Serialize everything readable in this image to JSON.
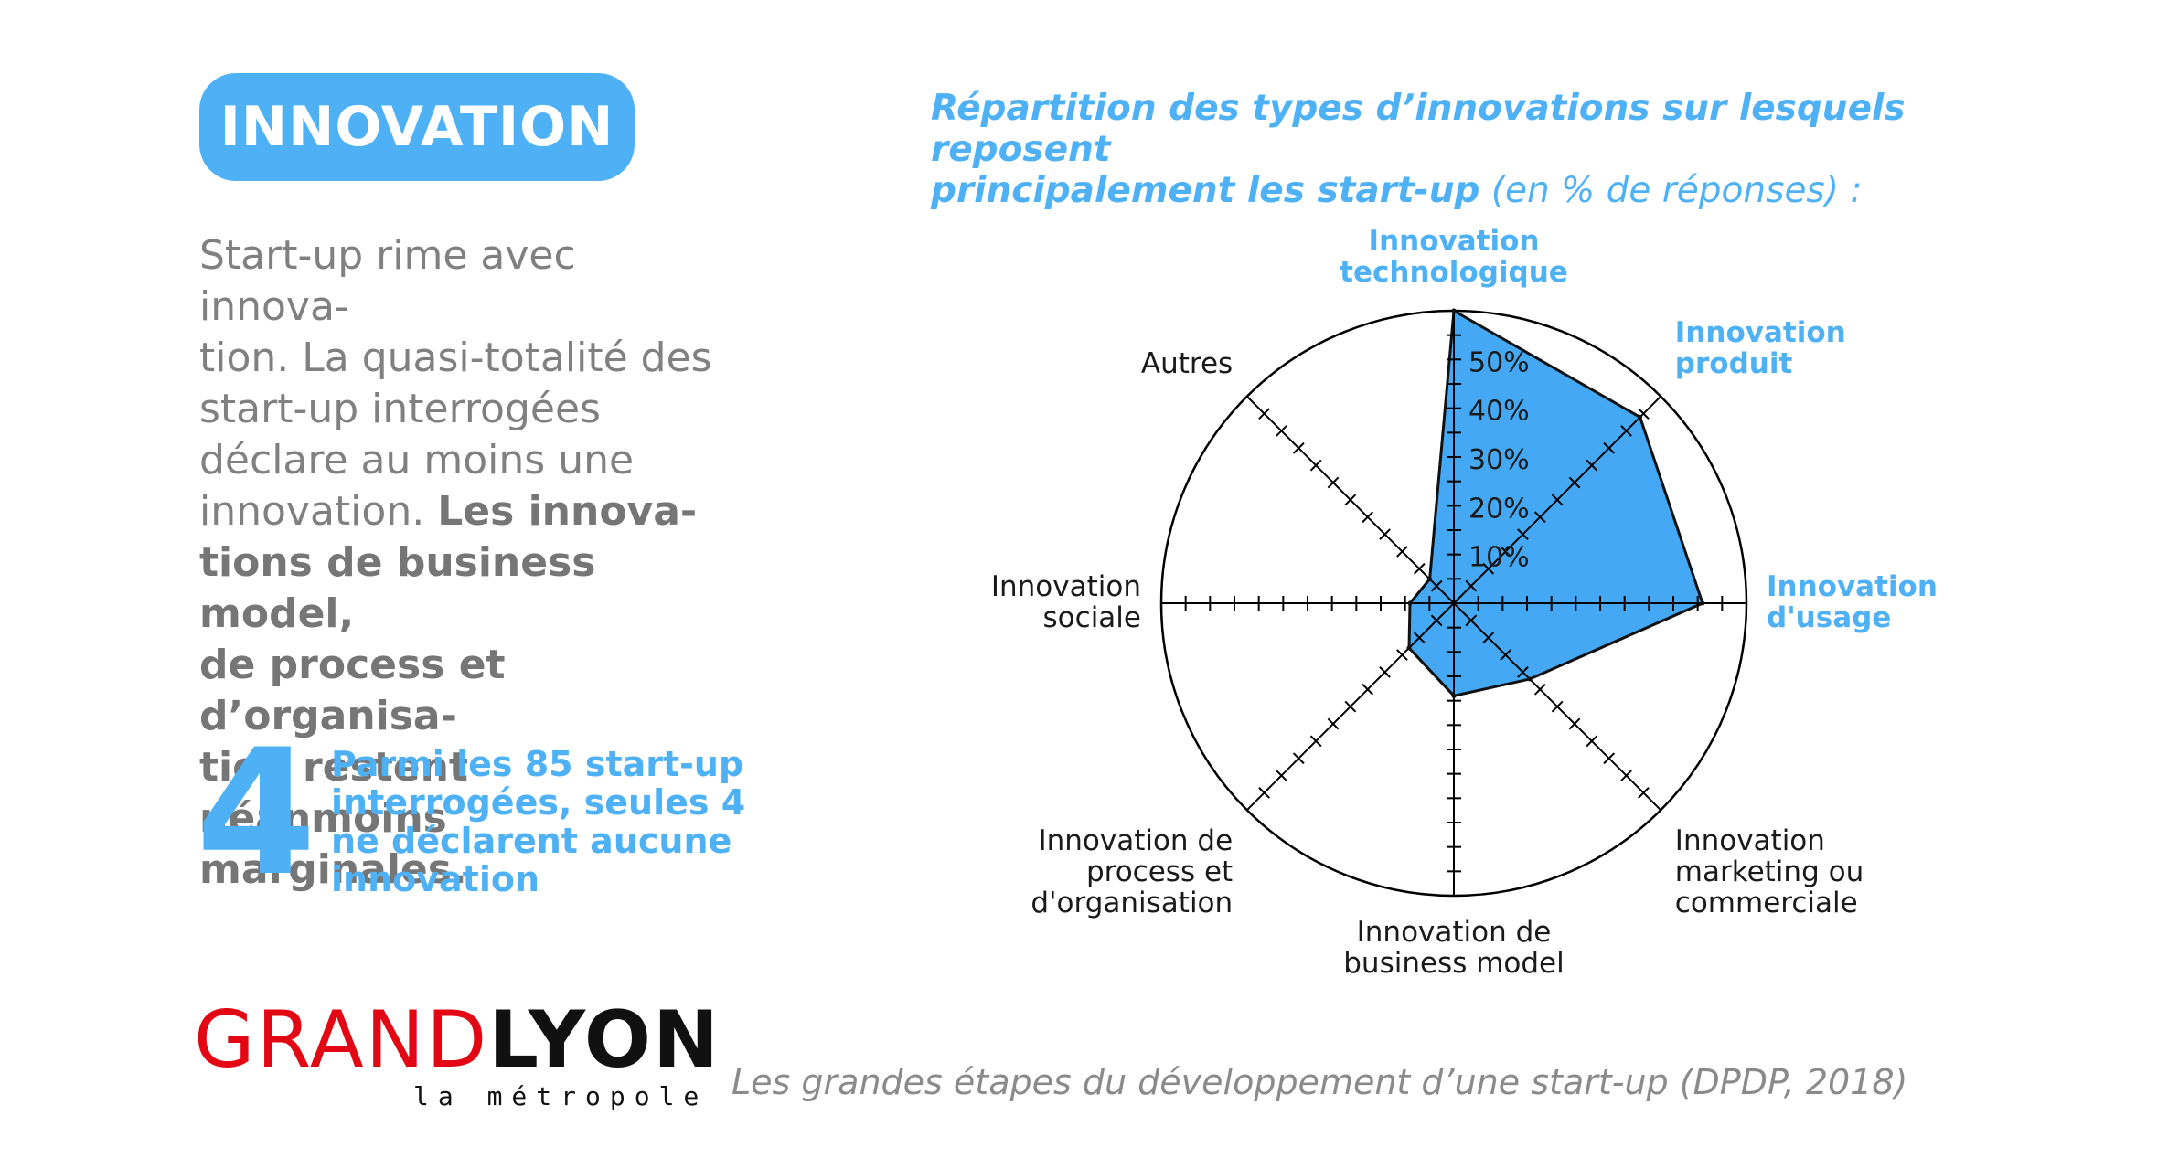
{
  "badge": {
    "label": "INNOVATION"
  },
  "intro": {
    "lines": [
      "Start-up rime avec innova-",
      "tion. La quasi-totalité des",
      "start-up interrogées",
      "déclare au moins une",
      "innovation."
    ],
    "bold_first": "Les innova-",
    "bold_lines": [
      "tions de business model,",
      "de process et d’organisa-",
      "tion restent néanmoins",
      "marginales."
    ]
  },
  "stat": {
    "number": "4",
    "lines": [
      "Parmi les 85 start-up",
      "interrogées, seules 4",
      "ne déclarent aucune",
      "innovation"
    ]
  },
  "chart_title": {
    "line1": "Répartition des types d’innovations sur lesquels reposent",
    "line2_bold": "principalement les start-up",
    "line2_rest": " (en % de réponses) :"
  },
  "chart_data": {
    "type": "radar",
    "categories": [
      "Innovation technologique",
      "Innovation produit",
      "Innovation d'usage",
      "Innovation marketing ou commerciale",
      "Innovation de business model",
      "Innovation de process et d'organisation",
      "Innovation sociale",
      "Autres"
    ],
    "category_lines": [
      [
        "Innovation",
        "technologique"
      ],
      [
        "Innovation",
        "produit"
      ],
      [
        "Innovation",
        "d'usage"
      ],
      [
        "Innovation",
        "marketing ou",
        "commerciale"
      ],
      [
        "Innovation de",
        "business model"
      ],
      [
        "Innovation de",
        "process et",
        "d'organisation"
      ],
      [
        "Innovation",
        "sociale"
      ],
      [
        "Autres"
      ]
    ],
    "highlighted": [
      true,
      true,
      true,
      false,
      false,
      false,
      false,
      false
    ],
    "values": [
      60,
      54,
      51,
      22,
      19,
      13,
      9,
      7
    ],
    "rmax": 60,
    "tick_step": 5,
    "tick_labels": [
      "10%",
      "20%",
      "30%",
      "40%",
      "50%"
    ],
    "tick_label_values": [
      10,
      20,
      30,
      40,
      50
    ],
    "colors": {
      "fill": "#45a8f4",
      "highlight": "#4fb1f5",
      "text": "#1a1a1a",
      "line": "#000000"
    }
  },
  "source": "Les grandes étapes du développement d’une start-up (DPDP, 2018)",
  "logo": {
    "grand": "GRAND",
    "lyon": "LYON",
    "sub": "la métropole"
  }
}
